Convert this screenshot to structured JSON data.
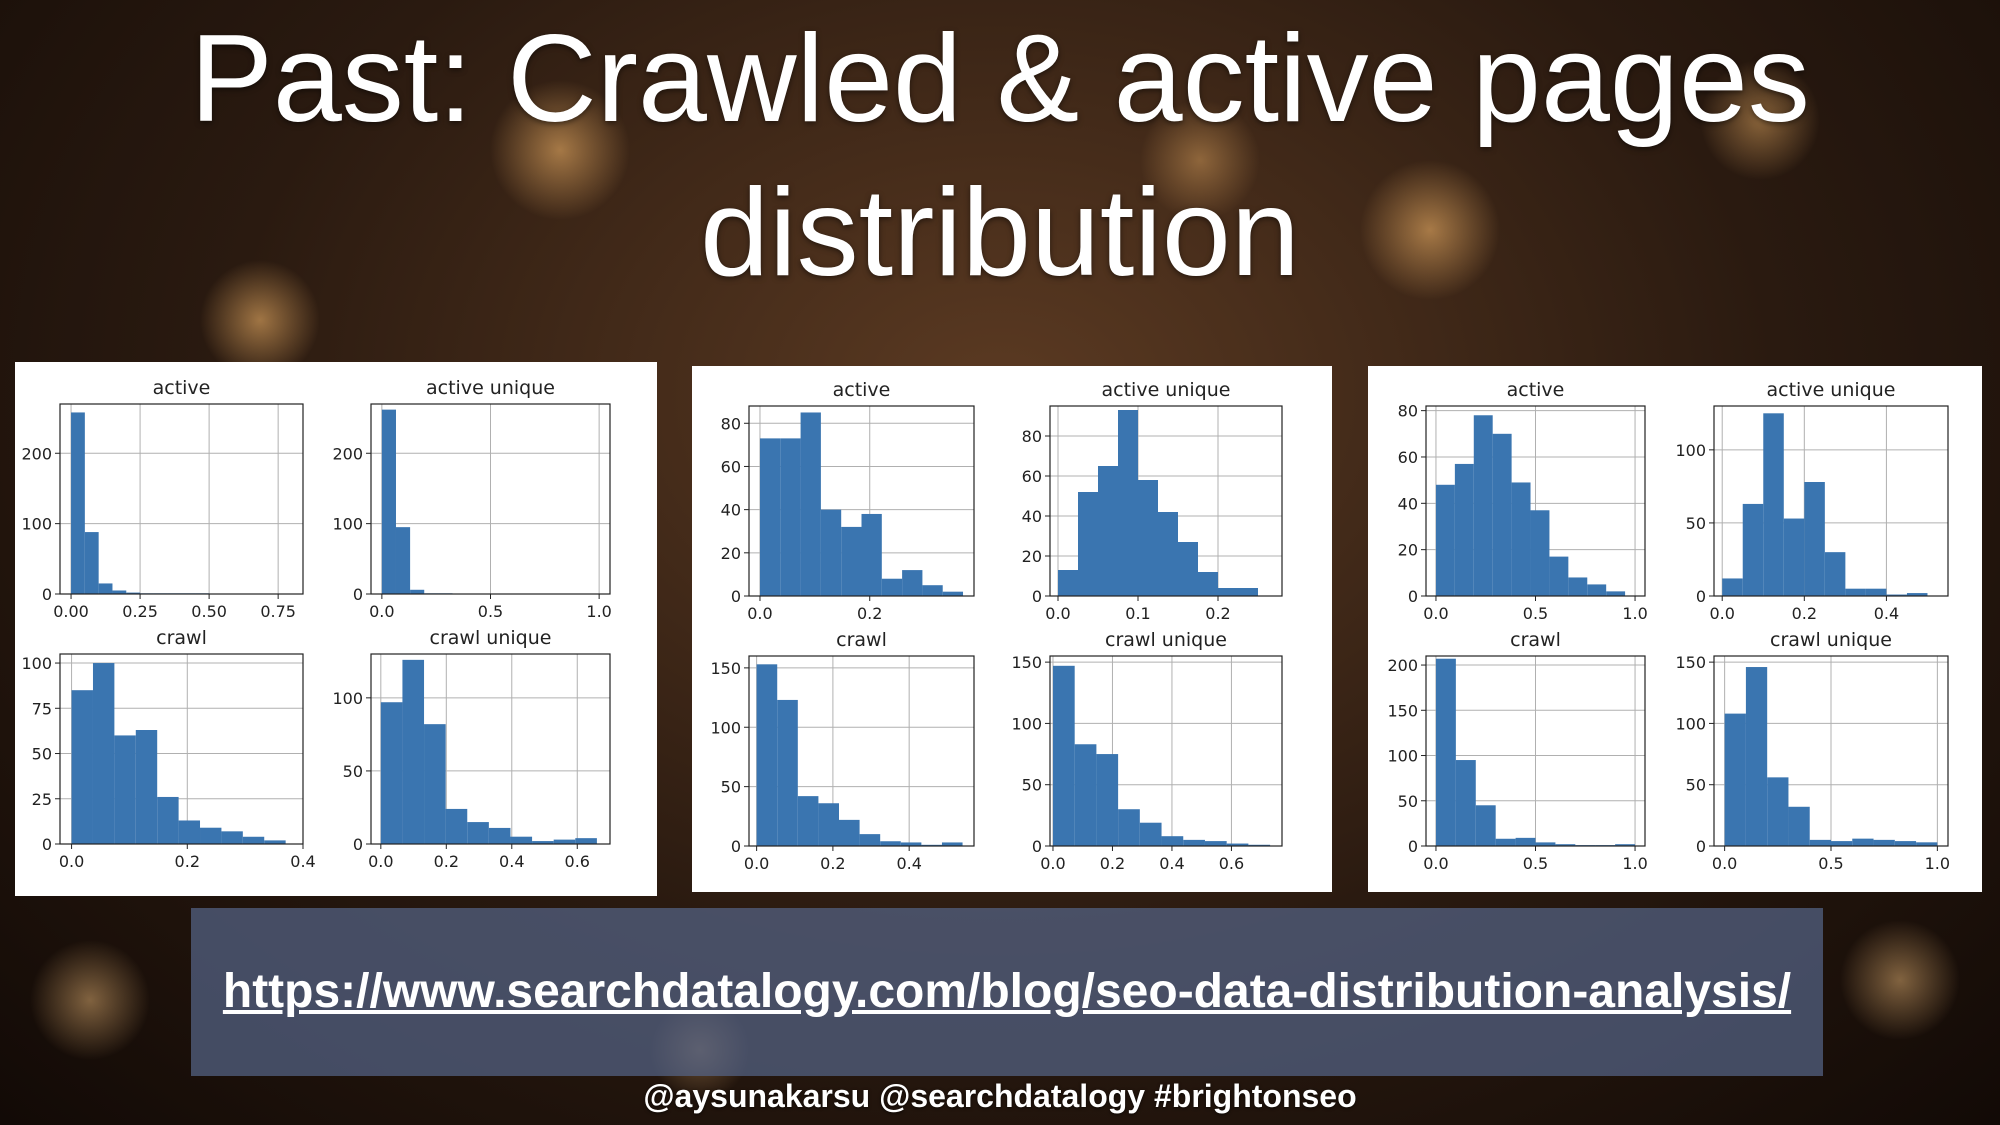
{
  "slide": {
    "title": "Past: Crawled & active pages distribution",
    "link": "https://www.searchdatalogy.com/blog/seo-data-distribution-analysis/",
    "footer": "@aysunakarsu @searchdatalogy #brightonseo"
  },
  "colors": {
    "bar": "#3a75b0",
    "grid": "#b0b0b0"
  },
  "chart_data": [
    {
      "type": "bar",
      "title": "active",
      "ylim": [
        0,
        270
      ],
      "xlim": [
        -0.04,
        0.84
      ],
      "yticks": [
        0,
        100,
        200
      ],
      "xticks": [
        0.0,
        0.25,
        0.5,
        0.75
      ],
      "xticklabels": [
        "0.00",
        "0.25",
        "0.50",
        "0.75"
      ],
      "bin_edges": [
        0.0,
        0.05,
        0.1,
        0.15,
        0.2,
        0.25,
        0.3,
        0.35,
        0.4,
        0.45,
        0.5
      ],
      "values": [
        258,
        88,
        15,
        5,
        2,
        1,
        1,
        1,
        1,
        1
      ]
    },
    {
      "type": "bar",
      "title": "active unique",
      "ylim": [
        0,
        270
      ],
      "xlim": [
        -0.05,
        1.05
      ],
      "yticks": [
        0,
        100,
        200
      ],
      "xticks": [
        0.0,
        0.5,
        1.0
      ],
      "xticklabels": [
        "0.0",
        "0.5",
        "1.0"
      ],
      "bin_edges": [
        0.0,
        0.065,
        0.13,
        0.195,
        0.26,
        0.325,
        0.39,
        0.455,
        0.52,
        0.585,
        0.65
      ],
      "values": [
        262,
        95,
        6,
        1,
        1,
        0,
        0,
        0,
        0,
        0
      ]
    },
    {
      "type": "bar",
      "title": "crawl",
      "ylim": [
        0,
        105
      ],
      "xlim": [
        -0.02,
        0.4
      ],
      "yticks": [
        0,
        25,
        50,
        75,
        100
      ],
      "xticks": [
        0.0,
        0.2,
        0.4
      ],
      "xticklabels": [
        "0.0",
        "0.2",
        "0.4"
      ],
      "bin_edges": [
        0.0,
        0.037,
        0.074,
        0.111,
        0.148,
        0.185,
        0.222,
        0.259,
        0.296,
        0.333,
        0.37
      ],
      "values": [
        85,
        100,
        60,
        63,
        26,
        13,
        9,
        7,
        4,
        2
      ]
    },
    {
      "type": "bar",
      "title": "crawl unique",
      "ylim": [
        0,
        130
      ],
      "xlim": [
        -0.03,
        0.7
      ],
      "yticks": [
        0,
        50,
        100
      ],
      "xticks": [
        0.0,
        0.2,
        0.4,
        0.6
      ],
      "xticklabels": [
        "0.0",
        "0.2",
        "0.4",
        "0.6"
      ],
      "bin_edges": [
        0.0,
        0.066,
        0.132,
        0.198,
        0.264,
        0.33,
        0.396,
        0.462,
        0.528,
        0.594,
        0.66
      ],
      "values": [
        97,
        126,
        82,
        24,
        15,
        11,
        5,
        2,
        3,
        4
      ]
    },
    {
      "type": "bar",
      "title": "active",
      "ylim": [
        0,
        88
      ],
      "xlim": [
        -0.02,
        0.39
      ],
      "yticks": [
        0,
        20,
        40,
        60,
        80
      ],
      "xticks": [
        0.0,
        0.2
      ],
      "xticklabels": [
        "0.0",
        "0.2"
      ],
      "bin_edges": [
        0.0,
        0.037,
        0.074,
        0.111,
        0.148,
        0.185,
        0.222,
        0.259,
        0.296,
        0.333,
        0.37
      ],
      "values": [
        73,
        73,
        85,
        40,
        32,
        38,
        8,
        12,
        5,
        2
      ]
    },
    {
      "type": "bar",
      "title": "active unique",
      "ylim": [
        0,
        95
      ],
      "xlim": [
        -0.01,
        0.28
      ],
      "yticks": [
        0,
        20,
        40,
        60,
        80
      ],
      "xticks": [
        0.0,
        0.1,
        0.2
      ],
      "xticklabels": [
        "0.0",
        "0.1",
        "0.2"
      ],
      "bin_edges": [
        0.0,
        0.025,
        0.05,
        0.075,
        0.1,
        0.125,
        0.15,
        0.175,
        0.2,
        0.225,
        0.25,
        0.275
      ],
      "values": [
        13,
        52,
        65,
        93,
        58,
        42,
        27,
        12,
        4,
        4,
        0
      ]
    },
    {
      "type": "bar",
      "title": "crawl",
      "ylim": [
        0,
        160
      ],
      "xlim": [
        -0.02,
        0.57
      ],
      "yticks": [
        0,
        50,
        100,
        150
      ],
      "xticks": [
        0.0,
        0.2,
        0.4
      ],
      "xticklabels": [
        "0.0",
        "0.2",
        "0.4"
      ],
      "bin_edges": [
        0.0,
        0.054,
        0.108,
        0.162,
        0.216,
        0.27,
        0.324,
        0.378,
        0.432,
        0.486,
        0.54
      ],
      "values": [
        153,
        123,
        42,
        36,
        22,
        10,
        4,
        3,
        1,
        3
      ]
    },
    {
      "type": "bar",
      "title": "crawl unique",
      "ylim": [
        0,
        155
      ],
      "xlim": [
        -0.01,
        0.77
      ],
      "yticks": [
        0,
        50,
        100,
        150
      ],
      "xticks": [
        0.0,
        0.2,
        0.4,
        0.6
      ],
      "xticklabels": [
        "0.0",
        "0.2",
        "0.4",
        "0.6"
      ],
      "bin_edges": [
        0.0,
        0.073,
        0.146,
        0.219,
        0.292,
        0.365,
        0.438,
        0.511,
        0.584,
        0.657,
        0.73
      ],
      "values": [
        147,
        83,
        75,
        30,
        19,
        8,
        5,
        4,
        2,
        1
      ]
    },
    {
      "type": "bar",
      "title": "active",
      "ylim": [
        0,
        82
      ],
      "xlim": [
        -0.05,
        1.05
      ],
      "yticks": [
        0,
        20,
        40,
        60,
        80
      ],
      "xticks": [
        0.0,
        0.5,
        1.0
      ],
      "xticklabels": [
        "0.0",
        "0.5",
        "1.0"
      ],
      "bin_edges": [
        0.0,
        0.095,
        0.19,
        0.285,
        0.38,
        0.475,
        0.57,
        0.665,
        0.76,
        0.855,
        0.95
      ],
      "values": [
        48,
        57,
        78,
        70,
        49,
        37,
        17,
        8,
        5,
        2
      ]
    },
    {
      "type": "bar",
      "title": "active unique",
      "ylim": [
        0,
        130
      ],
      "xlim": [
        -0.02,
        0.55
      ],
      "yticks": [
        0,
        50,
        100
      ],
      "xticks": [
        0.0,
        0.2,
        0.4
      ],
      "xticklabels": [
        "0.0",
        "0.2",
        "0.4"
      ],
      "bin_edges": [
        0.0,
        0.05,
        0.1,
        0.15,
        0.2,
        0.25,
        0.3,
        0.35,
        0.4,
        0.45,
        0.5
      ],
      "values": [
        12,
        63,
        125,
        53,
        78,
        30,
        5,
        5,
        1,
        2
      ]
    },
    {
      "type": "bar",
      "title": "crawl",
      "ylim": [
        0,
        210
      ],
      "xlim": [
        -0.05,
        1.05
      ],
      "yticks": [
        0,
        50,
        100,
        150,
        200
      ],
      "xticks": [
        0.0,
        0.5,
        1.0
      ],
      "xticklabels": [
        "0.0",
        "0.5",
        "1.0"
      ],
      "bin_edges": [
        0.0,
        0.1,
        0.2,
        0.3,
        0.4,
        0.5,
        0.6,
        0.7,
        0.8,
        0.9,
        1.0
      ],
      "values": [
        207,
        95,
        45,
        8,
        9,
        4,
        2,
        1,
        1,
        2
      ]
    },
    {
      "type": "bar",
      "title": "crawl unique",
      "ylim": [
        0,
        155
      ],
      "xlim": [
        -0.05,
        1.05
      ],
      "yticks": [
        0,
        50,
        100,
        150
      ],
      "xticks": [
        0.0,
        0.5,
        1.0
      ],
      "xticklabels": [
        "0.0",
        "0.5",
        "1.0"
      ],
      "bin_edges": [
        0.0,
        0.1,
        0.2,
        0.3,
        0.4,
        0.5,
        0.6,
        0.7,
        0.8,
        0.9,
        1.0
      ],
      "values": [
        108,
        146,
        56,
        32,
        5,
        4,
        6,
        5,
        4,
        3
      ]
    }
  ]
}
